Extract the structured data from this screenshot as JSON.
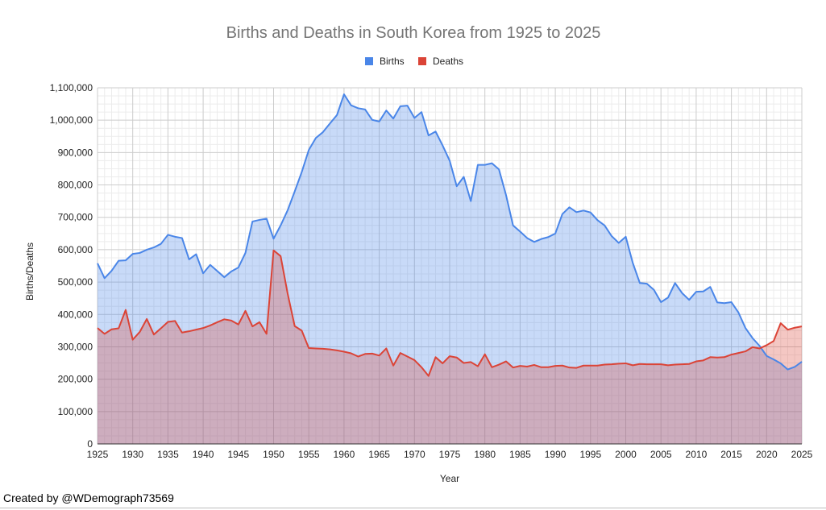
{
  "chart_data": {
    "type": "area",
    "title": "Births and Deaths in South Korea from 1925 to 2025",
    "xlabel": "Year",
    "ylabel": "Births/Deaths",
    "xlim": [
      1925,
      2025
    ],
    "ylim": [
      0,
      1100000
    ],
    "x_ticks": [
      1925,
      1930,
      1935,
      1940,
      1945,
      1950,
      1955,
      1960,
      1965,
      1970,
      1975,
      1980,
      1985,
      1990,
      1995,
      2000,
      2005,
      2010,
      2015,
      2020,
      2025
    ],
    "y_ticks": [
      0,
      100000,
      200000,
      300000,
      400000,
      500000,
      600000,
      700000,
      800000,
      900000,
      1000000,
      1100000
    ],
    "y_tick_labels": [
      "0",
      "100,000",
      "200,000",
      "300,000",
      "400,000",
      "500,000",
      "600,000",
      "700,000",
      "800,000",
      "900,000",
      "1,000,000",
      "1,100,000"
    ],
    "grid": true,
    "legend_position": "top",
    "x": [
      1925,
      1926,
      1927,
      1928,
      1929,
      1930,
      1931,
      1932,
      1933,
      1934,
      1935,
      1936,
      1937,
      1938,
      1939,
      1940,
      1941,
      1942,
      1943,
      1944,
      1945,
      1946,
      1947,
      1948,
      1949,
      1950,
      1951,
      1952,
      1953,
      1954,
      1955,
      1956,
      1957,
      1958,
      1959,
      1960,
      1961,
      1962,
      1963,
      1964,
      1965,
      1966,
      1967,
      1968,
      1969,
      1970,
      1971,
      1972,
      1973,
      1974,
      1975,
      1976,
      1977,
      1978,
      1979,
      1980,
      1981,
      1982,
      1983,
      1984,
      1985,
      1986,
      1987,
      1988,
      1989,
      1990,
      1991,
      1992,
      1993,
      1994,
      1995,
      1996,
      1997,
      1998,
      1999,
      2000,
      2001,
      2002,
      2003,
      2004,
      2005,
      2006,
      2007,
      2008,
      2009,
      2010,
      2011,
      2012,
      2013,
      2014,
      2015,
      2016,
      2017,
      2018,
      2019,
      2020,
      2021,
      2022,
      2023,
      2024,
      2025
    ],
    "series": [
      {
        "name": "Births",
        "color": "#4a86e8",
        "fill": "#c5d9f8",
        "values": [
          558000,
          512000,
          535000,
          566000,
          567000,
          587000,
          590000,
          600000,
          607000,
          618000,
          646000,
          640000,
          636000,
          570000,
          586000,
          527000,
          553000,
          534000,
          515000,
          533000,
          545000,
          590000,
          687000,
          692000,
          696000,
          634000,
          675000,
          722000,
          780000,
          840000,
          908000,
          945000,
          963000,
          990000,
          1016000,
          1080000,
          1046000,
          1037000,
          1033000,
          1001000,
          996000,
          1030000,
          1005000,
          1043000,
          1045000,
          1007000,
          1025000,
          953000,
          965000,
          922000,
          875000,
          796000,
          825000,
          750000,
          862000,
          862000,
          867000,
          848000,
          769000,
          675000,
          656000,
          636000,
          624000,
          633000,
          639000,
          650000,
          710000,
          731000,
          716000,
          721000,
          715000,
          691000,
          675000,
          642000,
          621000,
          640000,
          559000,
          497000,
          495000,
          476000,
          438000,
          452000,
          497000,
          466000,
          445000,
          470000,
          471000,
          485000,
          437000,
          435000,
          438000,
          406000,
          358000,
          327000,
          303000,
          272000,
          261000,
          249000,
          230000,
          238000,
          254000
        ]
      },
      {
        "name": "Deaths",
        "color": "#db4437",
        "fill": "#f4b6b1",
        "values": [
          358000,
          340000,
          354000,
          357000,
          414000,
          322000,
          346000,
          386000,
          338000,
          357000,
          377000,
          380000,
          344000,
          348000,
          353000,
          358000,
          366000,
          376000,
          385000,
          381000,
          369000,
          411000,
          363000,
          376000,
          340000,
          598000,
          580000,
          464000,
          364000,
          350000,
          296000,
          295000,
          294000,
          292000,
          289000,
          285000,
          280000,
          270000,
          278000,
          279000,
          273000,
          295000,
          242000,
          281000,
          270000,
          259000,
          237000,
          210000,
          268000,
          249000,
          271000,
          267000,
          250000,
          253000,
          240000,
          277000,
          237000,
          245000,
          255000,
          236000,
          241000,
          239000,
          244000,
          237000,
          237000,
          241000,
          242000,
          236000,
          235000,
          242000,
          242000,
          242000,
          245000,
          246000,
          248000,
          249000,
          243000,
          247000,
          246000,
          246000,
          246000,
          243000,
          245000,
          246000,
          247000,
          255000,
          258000,
          268000,
          267000,
          268000,
          276000,
          281000,
          286000,
          299000,
          295000,
          305000,
          318000,
          373000,
          353000,
          359000,
          363000
        ]
      }
    ]
  },
  "credit": "Created by @WDemograph73569"
}
